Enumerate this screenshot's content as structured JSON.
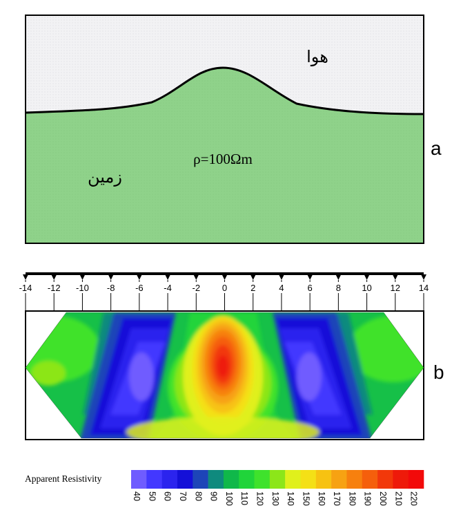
{
  "panel_a": {
    "air_label": "هوا",
    "ground_label": "زمین",
    "resistivity_label": "ρ=100Ωm",
    "letter": "a",
    "colors": {
      "air": "#f2f2f4",
      "ground": "#8fd28a"
    }
  },
  "panel_b": {
    "letter": "b",
    "axis": {
      "min": -14,
      "max": 14,
      "step": 2,
      "tick_labels": [
        "-14",
        "-12",
        "-10",
        "-8",
        "-6",
        "-4",
        "-2",
        "0",
        "2",
        "4",
        "6",
        "8",
        "10",
        "12",
        "14"
      ]
    },
    "pseudosection_shape": "trapezoid (hexagon) with apparent resistivity high centered under x=0 and lows on both sides",
    "peak_x": 0
  },
  "legend": {
    "title": "Apparent Resistivity",
    "values": [
      40,
      50,
      60,
      70,
      80,
      90,
      100,
      110,
      120,
      130,
      140,
      150,
      160,
      170,
      180,
      190,
      200,
      210,
      220
    ],
    "labels": [
      "40",
      "50",
      "60",
      "70",
      "80",
      "90",
      "100",
      "110",
      "120",
      "130",
      "140",
      "150",
      "160",
      "170",
      "180",
      "190",
      "200",
      "210",
      "220"
    ],
    "colors": [
      "#6f5cff",
      "#4338ff",
      "#2b24ee",
      "#1410d8",
      "#1d45b8",
      "#0f8a7e",
      "#10b84a",
      "#20d43a",
      "#3fe22c",
      "#8ce619",
      "#e0f01c",
      "#f4e016",
      "#f7c212",
      "#f7a212",
      "#f7800e",
      "#f55f0c",
      "#f2380a",
      "#ee1a0a",
      "#f20a0a"
    ]
  }
}
